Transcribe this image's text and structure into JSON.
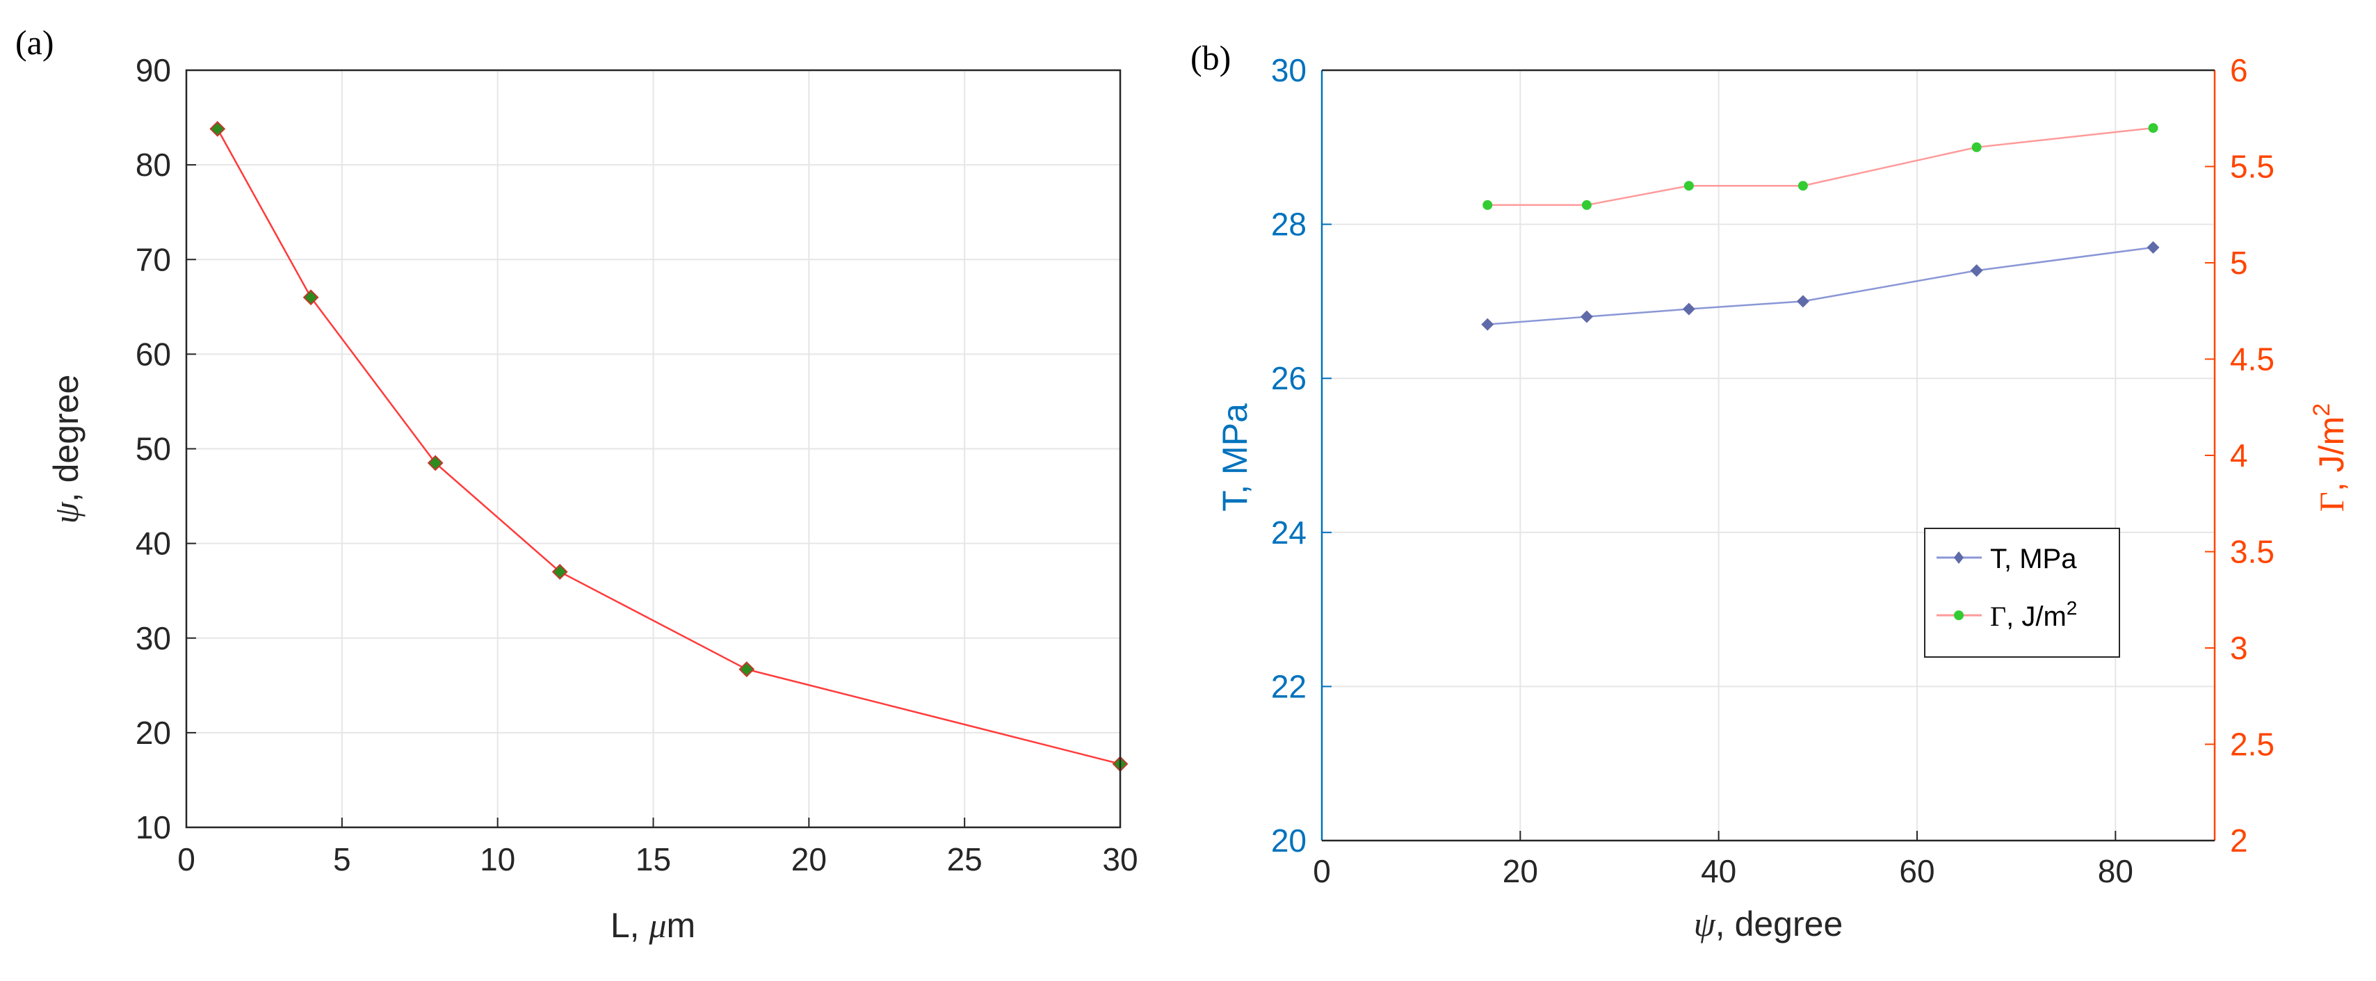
{
  "chart_data": [
    {
      "panel_label": "(a)",
      "type": "line",
      "xlabel": "L, μm",
      "xlabel_parts": {
        "pre": "L, ",
        "sym": "μ",
        "post": "m"
      },
      "ylabel": "ψ, degree",
      "ylabel_parts": {
        "sym": "ψ",
        "post": ", degree"
      },
      "xlim": [
        0,
        30
      ],
      "ylim": [
        10,
        90
      ],
      "xticks": [
        0,
        5,
        10,
        15,
        20,
        25,
        30
      ],
      "yticks": [
        10,
        20,
        30,
        40,
        50,
        60,
        70,
        80,
        90
      ],
      "grid": true,
      "series": [
        {
          "x": [
            1,
            4,
            8,
            12,
            18,
            30
          ],
          "y": [
            83.8,
            66,
            48.5,
            37,
            26.7,
            16.7
          ],
          "line_color": "#ff3b3b",
          "marker": "diamond",
          "marker_fill": "#2e8b1e",
          "marker_edge": "#c0392b"
        }
      ],
      "colors": {
        "axis": "#262626",
        "text": "#262626",
        "grid": "#e6e6e6"
      }
    },
    {
      "panel_label": "(b)",
      "type": "line",
      "xlabel": "ψ, degree",
      "xlabel_parts": {
        "sym": "ψ",
        "post": ", degree"
      },
      "xlim": [
        0,
        90
      ],
      "xticks": [
        0,
        20,
        40,
        60,
        80
      ],
      "ylabel_left": "T, MPa",
      "ylim_left": [
        20,
        30
      ],
      "yticks_left": [
        20,
        22,
        24,
        26,
        28,
        30
      ],
      "ylabel_right": "Γ, J/m2",
      "ylabel_right_parts": {
        "sym": "Γ",
        "post": ", J/m",
        "sup": "2"
      },
      "ylim_right": [
        2,
        6
      ],
      "yticks_right": [
        2,
        2.5,
        3,
        3.5,
        4,
        4.5,
        5,
        5.5,
        6
      ],
      "grid": true,
      "legend_placement": "center-right",
      "series": [
        {
          "name": "T, MPa",
          "axis": "left",
          "x": [
            16.7,
            26.7,
            37,
            48.5,
            66,
            83.8
          ],
          "y": [
            26.7,
            26.8,
            26.9,
            27.0,
            27.4,
            27.7
          ],
          "line_color": "#8a97d6",
          "marker": "diamond",
          "marker_fill": "#5f6aa8"
        },
        {
          "name": "Γ, J/m2",
          "name_parts": {
            "sym": "Γ",
            "post": ", J/m",
            "sup": "2"
          },
          "axis": "right",
          "x": [
            16.7,
            26.7,
            37,
            48.5,
            66,
            83.8
          ],
          "y": [
            5.3,
            5.3,
            5.4,
            5.4,
            5.6,
            5.7
          ],
          "line_color": "#ff9a9a",
          "marker": "circle",
          "marker_fill": "#33cc33"
        }
      ],
      "colors": {
        "left_axis": "#0072bd",
        "right_axis": "#ff4500",
        "axis": "#262626",
        "grid": "#e6e6e6"
      }
    }
  ]
}
